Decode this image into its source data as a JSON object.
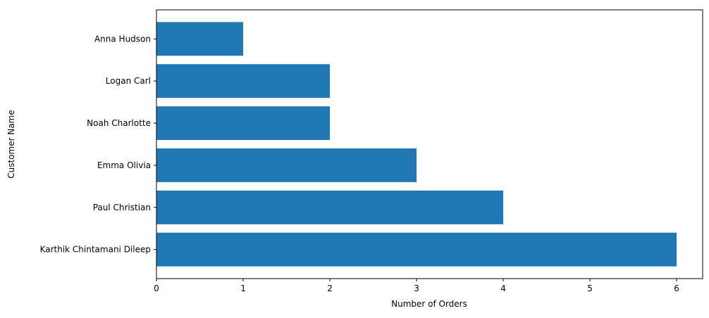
{
  "chart_data": {
    "type": "bar",
    "orientation": "horizontal",
    "title": "",
    "xlabel": "Number of Orders",
    "ylabel": "Customer Name",
    "categories": [
      "Karthik Chintamani Dileep",
      "Paul Christian",
      "Emma Olivia",
      "Noah Charlotte",
      "Logan Carl",
      "Anna Hudson"
    ],
    "values": [
      6,
      4,
      3,
      2,
      2,
      1
    ],
    "xlim": [
      0,
      6.3
    ],
    "xticks": [
      "0",
      "1",
      "2",
      "3",
      "4",
      "5",
      "6"
    ],
    "grid": false,
    "legend": "none",
    "bar_color": "#1f77b4"
  }
}
